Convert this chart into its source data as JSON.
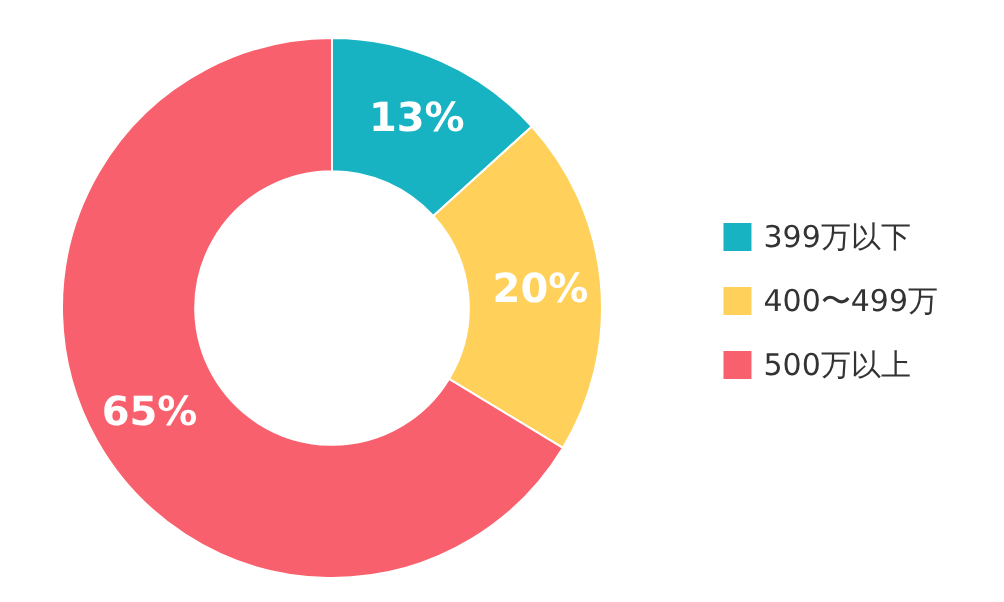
{
  "chart_data": {
    "type": "donut",
    "categories": [
      "399万以下",
      "400〜499万",
      "500万以上"
    ],
    "values": [
      13,
      20,
      65
    ],
    "colors": [
      "#17b3c3",
      "#ffd15a",
      "#f9606d"
    ],
    "value_labels": [
      "13%",
      "20%",
      "65%"
    ],
    "legend": "right"
  }
}
